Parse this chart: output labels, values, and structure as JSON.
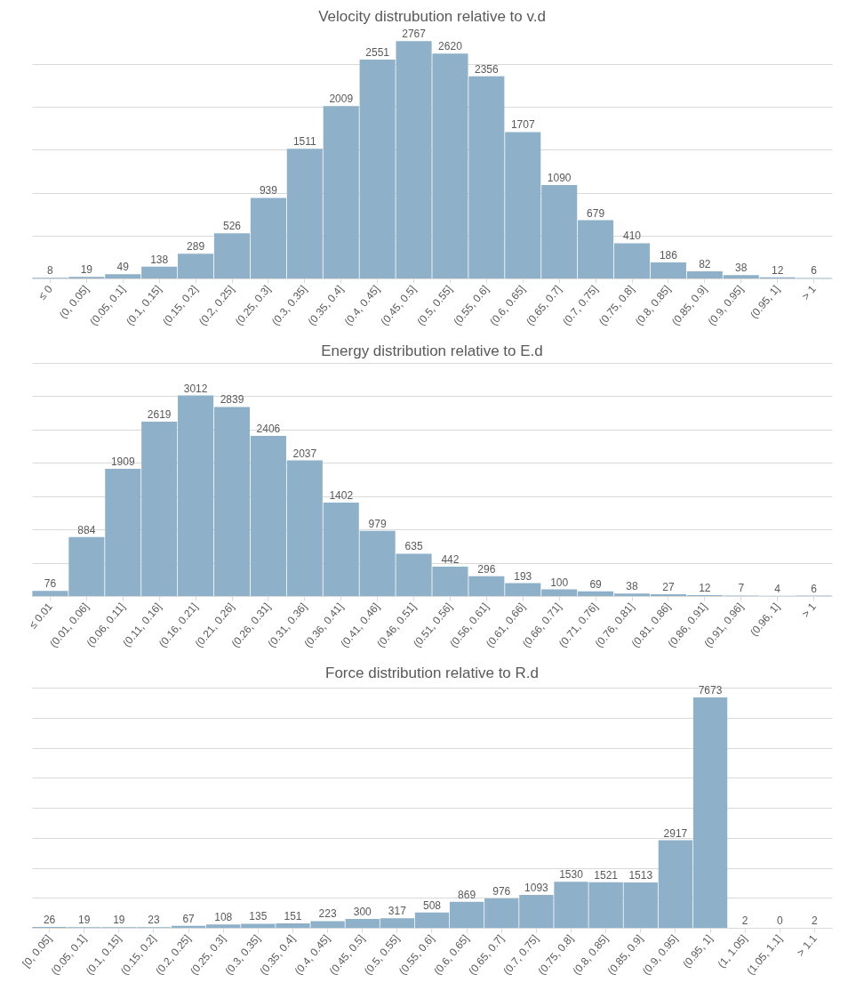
{
  "chart_data": [
    {
      "type": "bar",
      "title": "Velocity distrubution relative to v.d",
      "categories": [
        "≤ 0",
        "(0, 0.05]",
        "(0.05, 0.1]",
        "(0.1, 0.15]",
        "(0.15, 0.2]",
        "(0.2, 0.25]",
        "(0.25, 0.3]",
        "(0.3, 0.35]",
        "(0.35, 0.4]",
        "(0.4, 0.45]",
        "(0.45, 0.5]",
        "(0.5, 0.55]",
        "(0.55, 0.6]",
        "(0.6, 0.65]",
        "(0.65, 0.7]",
        "(0.7, 0.75]",
        "(0.75, 0.8]",
        "(0.8, 0.85]",
        "(0.85, 0.9]",
        "(0.9, 0.95]",
        "(0.95, 1]",
        "> 1"
      ],
      "values": [
        8,
        19,
        49,
        138,
        289,
        526,
        939,
        1511,
        2009,
        2551,
        2767,
        2620,
        2356,
        1707,
        1090,
        679,
        410,
        186,
        82,
        38,
        12,
        6
      ],
      "color": "#8eb0c9",
      "data_labels": true,
      "grid": "y",
      "tick_labels": "x"
    },
    {
      "type": "bar",
      "title": "Energy distribution relative to E.d",
      "categories": [
        "≤ 0.01",
        "(0.01, 0.06]",
        "(0.06, 0.11]",
        "(0.11, 0.16]",
        "(0.16, 0.21]",
        "(0.21, 0.26]",
        "(0.26, 0.31]",
        "(0.31, 0.36]",
        "(0.36, 0.41]",
        "(0.41, 0.46]",
        "(0.46, 0.51]",
        "(0.51, 0.56]",
        "(0.56, 0.61]",
        "(0.61, 0.66]",
        "(0.66, 0.71]",
        "(0.71, 0.76]",
        "(0.76, 0.81]",
        "(0.81, 0.86]",
        "(0.86, 0.91]",
        "(0.91, 0.96]",
        "(0.96, 1]",
        "> 1"
      ],
      "values": [
        76,
        884,
        1909,
        2619,
        3012,
        2839,
        2406,
        2037,
        1402,
        979,
        635,
        442,
        296,
        193,
        100,
        69,
        38,
        27,
        12,
        7,
        4,
        6
      ],
      "color": "#8eb0c9",
      "data_labels": true,
      "grid": "y",
      "tick_labels": "x"
    },
    {
      "type": "bar",
      "title": "Force distribution relative to R.d",
      "categories": [
        "[0, 0.05]",
        "(0.05, 0.1]",
        "(0.1, 0.15]",
        "(0.15, 0.2]",
        "(0.2, 0.25]",
        "(0.25, 0.3]",
        "(0.3, 0.35]",
        "(0.35, 0.4]",
        "(0.4, 0.45]",
        "(0.45, 0.5]",
        "(0.5, 0.55]",
        "(0.55, 0.6]",
        "(0.6, 0.65]",
        "(0.65, 0.7]",
        "(0.7, 0.75]",
        "(0.75, 0.8]",
        "(0.8, 0.85]",
        "(0.85, 0.9]",
        "(0.9, 0.95]",
        "(0.95, 1]",
        "(1, 1.05]",
        "(1.05, 1.1]",
        "> 1.1"
      ],
      "values": [
        26,
        19,
        19,
        23,
        67,
        108,
        135,
        151,
        223,
        300,
        317,
        508,
        869,
        976,
        1093,
        1530,
        1521,
        1513,
        2917,
        7673,
        2,
        0,
        2
      ],
      "color": "#8eb0c9",
      "data_labels": true,
      "grid": "y",
      "tick_labels": "x"
    }
  ]
}
